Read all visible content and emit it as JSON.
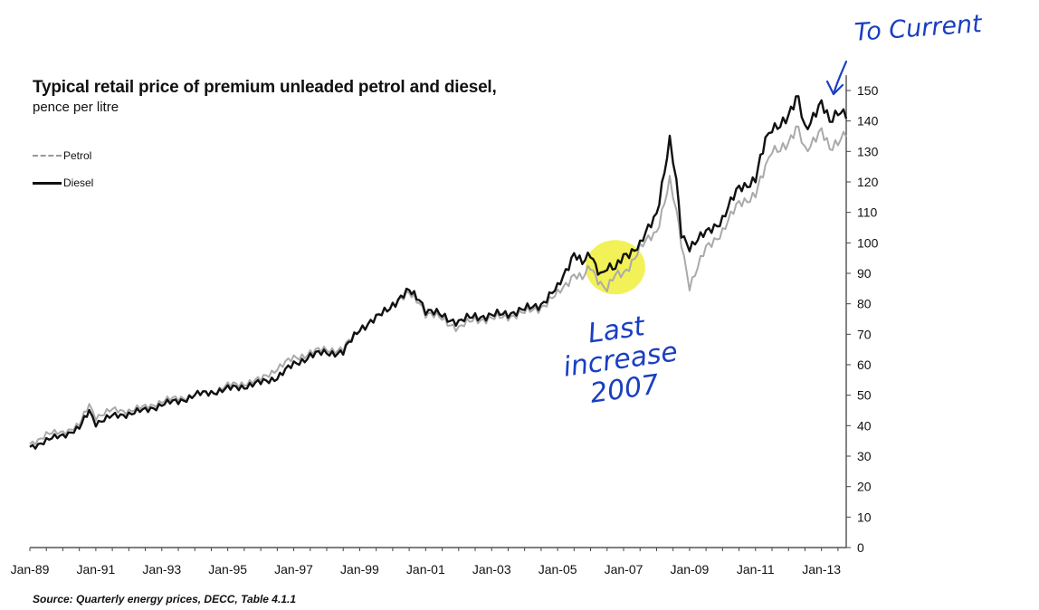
{
  "chart_data": {
    "type": "line",
    "title": "Typical retail price of premium unleaded petrol and diesel,",
    "subtitle": "pence per litre",
    "xlabel": "",
    "ylabel": "",
    "x_tick_labels": [
      "Jan-89",
      "Jan-91",
      "Jan-93",
      "Jan-95",
      "Jan-97",
      "Jan-99",
      "Jan-01",
      "Jan-03",
      "Jan-05",
      "Jan-07",
      "Jan-09",
      "Jan-11",
      "Jan-13"
    ],
    "x_range": [
      1989.0,
      2013.75
    ],
    "ylim": [
      0,
      150
    ],
    "y_ticks": [
      0,
      10,
      20,
      30,
      40,
      50,
      60,
      70,
      80,
      90,
      100,
      110,
      120,
      130,
      140,
      150
    ],
    "y_axis_side": "right",
    "grid": false,
    "legend_placement": "top-left",
    "series": [
      {
        "name": "Petrol",
        "color": "#aaaaaa",
        "style": "dashed",
        "x": [
          1989.0,
          1989.5,
          1990.0,
          1990.5,
          1990.8,
          1991.0,
          1991.5,
          1992.0,
          1992.5,
          1993.0,
          1993.5,
          1994.0,
          1994.5,
          1995.0,
          1995.5,
          1996.0,
          1996.5,
          1997.0,
          1997.5,
          1998.0,
          1998.5,
          1999.0,
          1999.5,
          2000.0,
          2000.5,
          2000.8,
          2001.0,
          2001.5,
          2002.0,
          2002.5,
          2003.0,
          2003.5,
          2004.0,
          2004.5,
          2005.0,
          2005.5,
          2005.75,
          2006.0,
          2006.3,
          2006.5,
          2006.75,
          2007.0,
          2007.5,
          2008.0,
          2008.4,
          2008.6,
          2008.75,
          2009.0,
          2009.5,
          2010.0,
          2010.5,
          2011.0,
          2011.3,
          2011.5,
          2012.0,
          2012.3,
          2012.5,
          2013.0,
          2013.25,
          2013.5,
          2013.75
        ],
        "y": [
          34,
          37,
          38,
          40,
          47,
          43,
          45,
          45,
          46,
          48,
          49,
          50,
          51,
          53,
          54,
          55,
          59,
          62,
          64,
          65,
          65,
          72,
          75,
          80,
          83,
          81,
          77,
          75,
          72,
          75,
          75,
          76,
          77,
          79,
          83,
          90,
          88,
          92,
          87,
          85,
          89,
          90,
          98,
          104,
          120,
          110,
          100,
          86,
          98,
          104,
          113,
          116,
          124,
          131,
          132,
          138,
          131,
          136,
          131,
          134,
          136
        ]
      },
      {
        "name": "Diesel",
        "color": "#111111",
        "style": "solid",
        "x": [
          1989.0,
          1989.5,
          1990.0,
          1990.5,
          1990.8,
          1991.0,
          1991.5,
          1992.0,
          1992.5,
          1993.0,
          1993.5,
          1994.0,
          1994.5,
          1995.0,
          1995.5,
          1996.0,
          1996.5,
          1997.0,
          1997.5,
          1998.0,
          1998.5,
          1999.0,
          1999.5,
          2000.0,
          2000.5,
          2000.8,
          2001.0,
          2001.5,
          2002.0,
          2002.5,
          2003.0,
          2003.5,
          2004.0,
          2004.5,
          2005.0,
          2005.5,
          2005.75,
          2006.0,
          2006.3,
          2006.5,
          2006.75,
          2007.0,
          2007.5,
          2008.0,
          2008.4,
          2008.6,
          2008.75,
          2009.0,
          2009.5,
          2010.0,
          2010.5,
          2011.0,
          2011.3,
          2011.5,
          2012.0,
          2012.3,
          2012.5,
          2013.0,
          2013.25,
          2013.5,
          2013.75
        ],
        "y": [
          33,
          35,
          37,
          39,
          45,
          41,
          43,
          44,
          45,
          47,
          48,
          50,
          51,
          52,
          53,
          54,
          56,
          60,
          63,
          64,
          64,
          72,
          75,
          80,
          84,
          82,
          78,
          76,
          74,
          76,
          76,
          77,
          78,
          80,
          85,
          97,
          93,
          96,
          90,
          92,
          91,
          96,
          99,
          110,
          133,
          120,
          103,
          99,
          103,
          108,
          118,
          121,
          133,
          138,
          141,
          148,
          138,
          145,
          140,
          144,
          142
        ]
      }
    ]
  },
  "legend": {
    "petrol": "Petrol",
    "diesel": "Diesel"
  },
  "source": "Source: Quarterly energy prices, DECC, Table 4.1.1",
  "annotations": {
    "to_current": "To Current",
    "last_increase_line1": "Last",
    "last_increase_line2": "increase",
    "last_increase_line3": "2007",
    "annotation_color": "#1a3fbf",
    "highlight_color": "#f0ef3a"
  }
}
